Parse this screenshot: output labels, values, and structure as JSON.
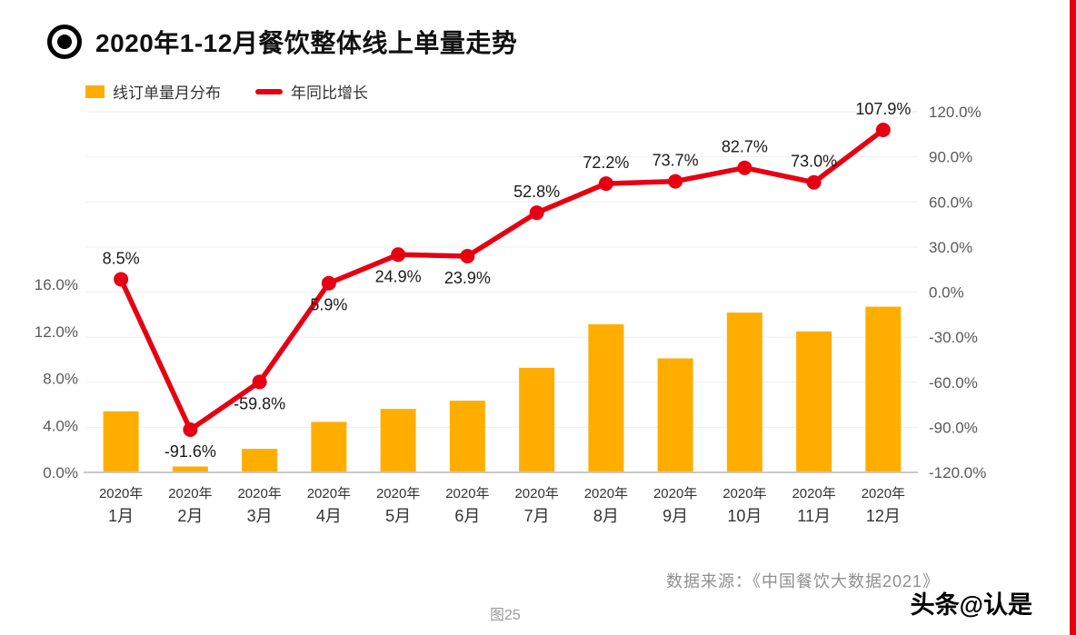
{
  "header": {
    "title": "2020年1-12月餐饮整体线上单量走势"
  },
  "legend": {
    "bar_label": "线订单量月分布",
    "line_label": "年同比增长"
  },
  "footer": {
    "source": "数据来源：《中国餐饮大数据2021》",
    "figure_label": "图25",
    "watermark": "头条@认是"
  },
  "colors": {
    "bar": "#FFAE00",
    "line": "#E60012",
    "accent_strip": "#E60012",
    "grid": "#eeeeee",
    "axis_line": "#c8c8c8",
    "tick_text": "#595959",
    "label_text": "#1a1a1a",
    "xlabel_text": "#333333"
  },
  "chart_data": {
    "type": "bar+line combo",
    "title": "2020年1-12月餐饮整体线上单量走势",
    "category_year": "2020年",
    "category_months": [
      "1月",
      "2月",
      "3月",
      "4月",
      "5月",
      "6月",
      "7月",
      "8月",
      "9月",
      "10月",
      "11月",
      "12月"
    ],
    "series": [
      {
        "name": "线订单量月分布",
        "chart": "bar",
        "axis": "left",
        "color": "#FFAE00",
        "unit": "%",
        "values": [
          5.2,
          0.5,
          2.0,
          4.3,
          5.4,
          6.1,
          8.9,
          12.6,
          9.7,
          13.6,
          12.0,
          14.1
        ]
      },
      {
        "name": "年同比增长",
        "chart": "line",
        "axis": "right",
        "color": "#E60012",
        "unit": "%",
        "values": [
          8.5,
          -91.6,
          -59.8,
          5.9,
          24.9,
          23.9,
          52.8,
          72.2,
          73.7,
          82.7,
          73.0,
          107.9
        ],
        "labels": [
          "8.5%",
          "-91.6%",
          "-59.8%",
          "5.9%",
          "24.9%",
          "23.9%",
          "52.8%",
          "72.2%",
          "73.7%",
          "82.7%",
          "73.0%",
          "107.9%"
        ],
        "label_below": [
          false,
          true,
          true,
          true,
          true,
          true,
          false,
          false,
          false,
          false,
          false,
          false
        ]
      }
    ],
    "left_axis": {
      "min": 0,
      "max": 16,
      "tick_values": [
        0,
        4,
        8,
        12,
        16
      ],
      "tick_labels": [
        "0.0%",
        "4.0%",
        "8.0%",
        "12.0%",
        "16.0%"
      ]
    },
    "right_axis": {
      "min": -120,
      "max": 120,
      "tick_values": [
        120,
        90,
        60,
        30,
        0,
        -30,
        -60,
        -90,
        -120
      ],
      "tick_labels": [
        "120.0%",
        "90.0%",
        "60.0%",
        "30.0%",
        "0.0%",
        "-30.0%",
        "-60.0%",
        "-90.0%",
        "-120.0%"
      ]
    },
    "grid": true,
    "legend_position": "top-left"
  }
}
